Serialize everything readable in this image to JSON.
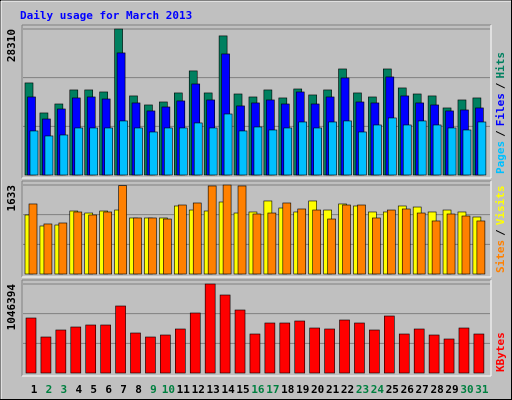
{
  "title": "Daily usage for March 2013",
  "categories": [
    "1",
    "2",
    "3",
    "4",
    "5",
    "6",
    "7",
    "8",
    "9",
    "10",
    "11",
    "12",
    "13",
    "14",
    "15",
    "16",
    "17",
    "18",
    "19",
    "20",
    "21",
    "22",
    "23",
    "24",
    "25",
    "26",
    "27",
    "28",
    "29",
    "30",
    "31"
  ],
  "weekend_indices": [
    1,
    2,
    8,
    9,
    15,
    16,
    22,
    23,
    29,
    30
  ],
  "category_color": "#000000",
  "weekend_color": "#008040",
  "legend_separator": "/",
  "chart_data": [
    {
      "type": "bar",
      "ylim": [
        0,
        28310
      ],
      "yticks": [
        28310
      ],
      "grid_divisions": 3,
      "series": [
        {
          "name": "Hits",
          "color": "#008060",
          "values": [
            17850,
            12030,
            13770,
            16490,
            16490,
            16100,
            28310,
            15330,
            13580,
            14160,
            15910,
            20180,
            15910,
            26970,
            15710,
            15130,
            16490,
            14940,
            16680,
            15520,
            16490,
            20560,
            15910,
            15130,
            20560,
            16880,
            15710,
            15330,
            13000,
            14550,
            14940
          ]
        },
        {
          "name": "Files",
          "color": "#0000ff",
          "values": [
            15130,
            10860,
            12800,
            14940,
            15130,
            14740,
            23670,
            13970,
            12420,
            13190,
            14360,
            17650,
            14550,
            23470,
            13390,
            13970,
            14550,
            13770,
            16100,
            13770,
            15130,
            18820,
            14160,
            13970,
            19010,
            15330,
            13970,
            13580,
            12420,
            12610,
            13000
          ]
        },
        {
          "name": "Pages",
          "color": "#00c0ff",
          "values": [
            8540,
            7570,
            7760,
            9120,
            9120,
            9120,
            10480,
            9120,
            8340,
            9120,
            9120,
            10090,
            9120,
            11830,
            8540,
            9310,
            8730,
            9120,
            10280,
            9120,
            10280,
            10480,
            8340,
            9700,
            11060,
            9700,
            10480,
            9700,
            9120,
            8730,
            10280
          ]
        }
      ]
    },
    {
      "type": "bar",
      "ylim": [
        0,
        1633
      ],
      "yticks": [
        1633
      ],
      "grid_divisions": 3,
      "series": [
        {
          "name": "Visits",
          "color": "#ffff00",
          "values": [
            1083,
            881,
            899,
            1156,
            1119,
            1156,
            1174,
            1028,
            1028,
            1028,
            1248,
            1174,
            1156,
            1321,
            1119,
            1138,
            1340,
            1211,
            1138,
            1340,
            1174,
            1285,
            1248,
            1138,
            1138,
            1248,
            1229,
            1138,
            1174,
            1138,
            1046
          ]
        },
        {
          "name": "Sites",
          "color": "#ff8000",
          "values": [
            1285,
            918,
            936,
            1138,
            1083,
            1138,
            1620,
            1028,
            1028,
            1009,
            1266,
            1303,
            1615,
            1633,
            1615,
            1101,
            1119,
            1303,
            1193,
            1174,
            1009,
            1266,
            1266,
            1028,
            1174,
            1193,
            1119,
            973,
            1101,
            1064,
            973
          ]
        }
      ]
    },
    {
      "type": "bar",
      "ylim": [
        0,
        1046394
      ],
      "yticks": [
        1046394
      ],
      "grid_divisions": 3,
      "series": [
        {
          "name": "KBytes",
          "color": "#ff0000",
          "values": [
            646640,
            423260,
            505550,
            540820,
            564340,
            564340,
            787720,
            470280,
            423260,
            446770,
            517310,
            705420,
            1046394,
            917050,
            740700,
            458530,
            587870,
            587870,
            611380,
            529070,
            517310,
            623130,
            587870,
            505550,
            670150,
            458530,
            517310,
            446770,
            399750,
            529070,
            458530
          ]
        }
      ]
    }
  ]
}
